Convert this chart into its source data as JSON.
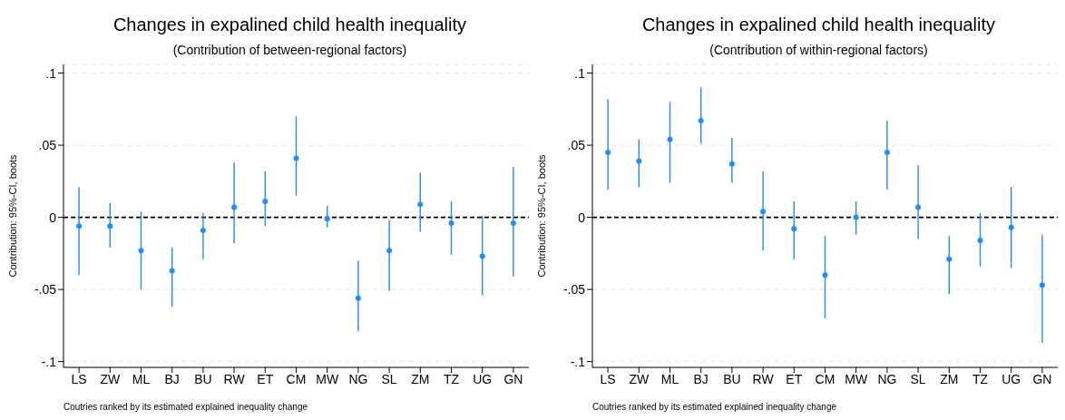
{
  "chart_data": [
    {
      "type": "scatter",
      "title": "Changes in expalined child health inequality",
      "subtitle": "(Contribution of between-regional factors)",
      "xlabel": "Coutries ranked by its estimated explained inequality change",
      "ylabel": "Contribution: 95%-CI, boots",
      "categories": [
        "LS",
        "ZW",
        "ML",
        "BJ",
        "BU",
        "RW",
        "ET",
        "CM",
        "MW",
        "NG",
        "SL",
        "ZM",
        "TZ",
        "UG",
        "GN"
      ],
      "series": [
        {
          "color": "#1f8cff",
          "values": [
            -0.006,
            -0.006,
            -0.023,
            -0.037,
            -0.009,
            0.007,
            0.011,
            0.041,
            -0.001,
            -0.056,
            -0.023,
            0.009,
            -0.004,
            -0.027,
            -0.004
          ],
          "errors": [
            [
              -0.04,
              0.021
            ],
            [
              -0.021,
              0.01
            ],
            [
              -0.05,
              0.004
            ],
            [
              -0.062,
              -0.021
            ],
            [
              -0.029,
              0.003
            ],
            [
              -0.018,
              0.038
            ],
            [
              -0.006,
              0.032
            ],
            [
              0.015,
              0.07
            ],
            [
              -0.007,
              0.008
            ],
            [
              -0.079,
              -0.03
            ],
            [
              -0.051,
              -0.002
            ],
            [
              -0.01,
              0.031
            ],
            [
              -0.026,
              0.011
            ],
            [
              -0.054,
              0.001
            ],
            [
              -0.041,
              0.035
            ]
          ]
        }
      ],
      "ylim": [
        -0.104,
        0.106
      ],
      "yticks": [
        {
          "value": -0.1,
          "label": "-.1"
        },
        {
          "value": -0.05,
          "label": "-.05"
        },
        0,
        {
          "value": 0.05,
          "label": ".05"
        },
        {
          "value": 0.1,
          "label": ".1"
        }
      ],
      "grid": "y",
      "marker": "circle",
      "ref_lines": [
        {
          "axis": "y",
          "value": 0,
          "line_style": "dashed",
          "color": "#000000"
        }
      ]
    },
    {
      "type": "scatter",
      "title": "Changes in expalined child health inequality",
      "subtitle": "(Contribution of within-regional factors)",
      "xlabel": "Coutries ranked by its estimated explained inequality change",
      "ylabel": "Contribution: 95%-CI, boots",
      "categories": [
        "LS",
        "ZW",
        "ML",
        "BJ",
        "BU",
        "RW",
        "ET",
        "CM",
        "MW",
        "NG",
        "SL",
        "ZM",
        "TZ",
        "UG",
        "GN"
      ],
      "series": [
        {
          "color": "#1f8cff",
          "values": [
            0.045,
            0.039,
            0.054,
            0.067,
            0.037,
            0.004,
            -0.008,
            -0.04,
            0.0,
            0.045,
            0.007,
            -0.029,
            -0.016,
            -0.007,
            -0.047
          ],
          "errors": [
            [
              0.019,
              0.082
            ],
            [
              0.021,
              0.054
            ],
            [
              0.024,
              0.08
            ],
            [
              0.051,
              0.09
            ],
            [
              0.024,
              0.055
            ],
            [
              -0.023,
              0.032
            ],
            [
              -0.029,
              0.011
            ],
            [
              -0.07,
              -0.013
            ],
            [
              -0.012,
              0.011
            ],
            [
              0.019,
              0.067
            ],
            [
              -0.015,
              0.036
            ],
            [
              -0.053,
              -0.013
            ],
            [
              -0.034,
              0.003
            ],
            [
              -0.035,
              0.021
            ],
            [
              -0.087,
              -0.012
            ]
          ]
        }
      ],
      "ylim": [
        -0.104,
        0.106
      ],
      "yticks": [
        {
          "value": -0.1,
          "label": "-.1"
        },
        {
          "value": -0.05,
          "label": "-.05"
        },
        0,
        {
          "value": 0.05,
          "label": ".05"
        },
        {
          "value": 0.1,
          "label": ".1"
        }
      ],
      "grid": "y",
      "marker": "circle",
      "ref_lines": [
        {
          "axis": "y",
          "value": 0,
          "line_style": "dashed",
          "color": "#000000"
        }
      ]
    }
  ]
}
